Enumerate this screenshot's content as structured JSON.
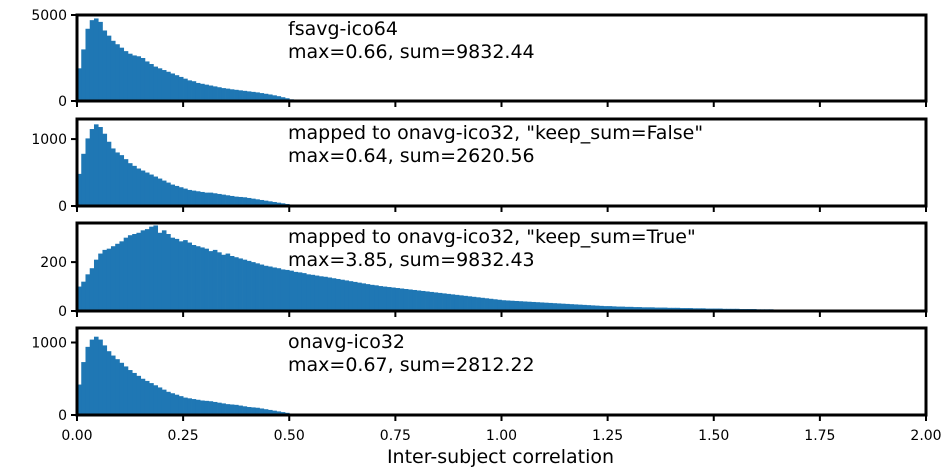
{
  "chart_data": {
    "type": "bar",
    "shared_x": {
      "label": "Inter-subject correlation",
      "xlim": [
        0,
        2.0
      ],
      "ticks": [
        0.0,
        0.25,
        0.5,
        0.75,
        1.0,
        1.25,
        1.5,
        1.75,
        2.0
      ],
      "tick_labels": [
        "0.00",
        "0.25",
        "0.50",
        "0.75",
        "1.00",
        "1.25",
        "1.50",
        "1.75",
        "2.00"
      ]
    },
    "bar_color": "#1f77b4",
    "panels": [
      {
        "annotation": [
          "fsavg-ico64",
          "max=0.66, sum=9832.44"
        ],
        "ylim": [
          0,
          5000
        ],
        "yticks": [
          0,
          5000
        ],
        "ytick_labels": [
          "0",
          "5000"
        ],
        "bin_width": 0.01,
        "x_start": 0.0,
        "values": [
          1900,
          3000,
          4200,
          4700,
          4800,
          4600,
          4100,
          3800,
          3500,
          3300,
          3100,
          2900,
          2750,
          2650,
          2600,
          2500,
          2300,
          2150,
          2000,
          1900,
          1800,
          1700,
          1600,
          1500,
          1400,
          1300,
          1200,
          1150,
          1050,
          1000,
          950,
          900,
          850,
          800,
          750,
          720,
          680,
          650,
          620,
          590,
          560,
          530,
          500,
          460,
          420,
          380,
          330,
          280,
          220,
          160,
          100,
          60,
          30,
          10
        ]
      },
      {
        "annotation": [
          "mapped to onavg-ico32, \"keep_sum=False\"",
          "max=0.64, sum=2620.56"
        ],
        "ylim": [
          0,
          1300
        ],
        "yticks": [
          0,
          1000
        ],
        "ytick_labels": [
          "0",
          "1000"
        ],
        "bin_width": 0.01,
        "x_start": 0.0,
        "values": [
          480,
          780,
          1010,
          1150,
          1220,
          1180,
          1080,
          960,
          860,
          800,
          760,
          700,
          640,
          600,
          560,
          530,
          500,
          470,
          440,
          410,
          380,
          350,
          320,
          300,
          280,
          260,
          240,
          230,
          220,
          210,
          200,
          200,
          190,
          180,
          170,
          160,
          150,
          140,
          135,
          130,
          120,
          110,
          100,
          90,
          80,
          70,
          60,
          50,
          40,
          30,
          20,
          10
        ]
      },
      {
        "annotation": [
          "mapped to onavg-ico32, \"keep_sum=True\"",
          "max=3.85, sum=9832.43"
        ],
        "ylim": [
          0,
          360
        ],
        "yticks": [
          0,
          200
        ],
        "ytick_labels": [
          "0",
          "200"
        ],
        "bin_width": 0.01,
        "x_start": 0.0,
        "values": [
          100,
          120,
          150,
          175,
          210,
          235,
          250,
          255,
          265,
          275,
          285,
          300,
          310,
          315,
          320,
          330,
          335,
          345,
          350,
          320,
          330,
          315,
          300,
          295,
          285,
          290,
          280,
          270,
          265,
          260,
          255,
          245,
          250,
          240,
          230,
          235,
          225,
          220,
          215,
          210,
          205,
          200,
          195,
          190,
          185,
          182,
          178,
          175,
          170,
          168,
          165,
          160,
          158,
          155,
          150,
          148,
          145,
          142,
          140,
          137,
          134,
          131,
          128,
          125,
          122,
          119,
          116,
          113,
          110,
          107,
          105,
          102,
          100,
          98,
          96,
          94,
          92,
          90,
          88,
          86,
          84,
          82,
          80,
          78,
          76,
          74,
          72,
          70,
          68,
          66,
          64,
          62,
          60,
          58,
          56,
          54,
          52,
          50,
          48,
          46,
          44,
          43,
          42,
          41,
          40,
          39,
          38,
          37,
          36,
          35,
          34,
          33,
          32,
          31,
          30,
          29,
          28,
          27,
          26,
          25,
          24,
          23,
          22,
          21,
          20,
          20,
          19,
          18,
          18,
          17,
          17,
          16,
          16,
          15,
          15,
          15,
          14,
          14,
          14,
          13,
          13,
          13,
          12,
          12,
          12,
          11,
          11,
          11,
          10,
          10,
          10,
          10,
          9,
          9,
          9,
          9,
          8,
          8,
          8,
          8,
          7,
          7,
          7,
          7,
          6,
          6,
          6,
          6,
          5,
          5,
          5,
          5,
          4,
          4,
          4,
          4,
          3,
          3,
          3,
          3,
          3,
          2,
          2,
          2,
          2,
          2,
          1,
          1,
          1,
          1,
          1,
          1,
          1,
          1,
          1,
          1,
          1,
          1,
          1,
          1
        ]
      },
      {
        "annotation": [
          "onavg-ico32",
          "max=0.67, sum=2812.22"
        ],
        "ylim": [
          0,
          1200
        ],
        "yticks": [
          0,
          1000
        ],
        "ytick_labels": [
          "0",
          "1000"
        ],
        "bin_width": 0.01,
        "x_start": 0.0,
        "values": [
          420,
          730,
          940,
          1040,
          1080,
          1040,
          960,
          880,
          820,
          770,
          720,
          670,
          620,
          580,
          540,
          500,
          470,
          440,
          410,
          380,
          350,
          320,
          300,
          280,
          260,
          240,
          230,
          220,
          210,
          200,
          195,
          190,
          180,
          170,
          160,
          150,
          145,
          140,
          130,
          120,
          110,
          105,
          100,
          90,
          80,
          70,
          60,
          50,
          40,
          30,
          20,
          10,
          5
        ]
      }
    ]
  }
}
